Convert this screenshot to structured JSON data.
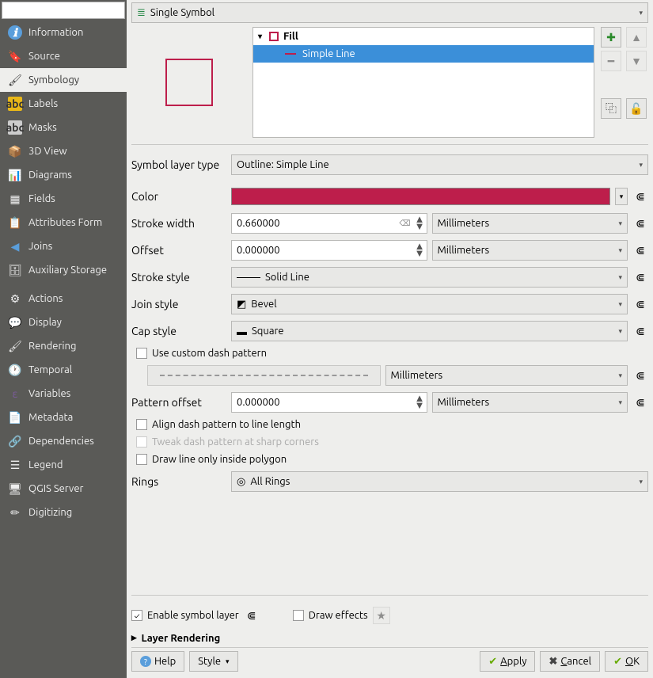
{
  "sidebar": {
    "search_placeholder": "",
    "items": [
      {
        "label": "Information",
        "icon": "ℹ",
        "cls": "icon-info"
      },
      {
        "label": "Source",
        "icon": "🔖",
        "cls": "icon-tag"
      },
      {
        "label": "Symbology",
        "icon": "🖌",
        "cls": "icon-brush",
        "selected": true
      },
      {
        "label": "Labels",
        "icon": "abc",
        "cls": "icon-abc"
      },
      {
        "label": "Masks",
        "icon": "abc",
        "cls": "icon-abc-gray"
      },
      {
        "label": "3D View",
        "icon": "📦",
        "cls": "icon-cube"
      },
      {
        "label": "Diagrams",
        "icon": "📊",
        "cls": "icon-bars"
      },
      {
        "label": "Fields",
        "icon": "▦",
        "cls": "icon-table"
      },
      {
        "label": "Attributes Form",
        "icon": "📋",
        "cls": "icon-form"
      },
      {
        "label": "Joins",
        "icon": "◀",
        "cls": "icon-join"
      },
      {
        "label": "Auxiliary Storage",
        "icon": "🗄",
        "cls": "icon-db"
      },
      {
        "sep": true
      },
      {
        "label": "Actions",
        "icon": "⚙",
        "cls": "icon-gear"
      },
      {
        "label": "Display",
        "icon": "💬",
        "cls": "icon-chat"
      },
      {
        "label": "Rendering",
        "icon": "🖌",
        "cls": "icon-brush"
      },
      {
        "label": "Temporal",
        "icon": "🕐",
        "cls": "icon-clock"
      },
      {
        "label": "Variables",
        "icon": "ε",
        "cls": "icon-var"
      },
      {
        "label": "Metadata",
        "icon": "📄",
        "cls": "icon-meta"
      },
      {
        "label": "Dependencies",
        "icon": "🔗",
        "cls": "icon-dep"
      },
      {
        "label": "Legend",
        "icon": "☰",
        "cls": "icon-legend"
      },
      {
        "label": "QGIS Server",
        "icon": "🖥",
        "cls": "icon-server"
      },
      {
        "label": "Digitizing",
        "icon": "✏",
        "cls": "icon-digit"
      }
    ]
  },
  "symbol_type": "Single Symbol",
  "tree": {
    "root": "Fill",
    "child": "Simple Line"
  },
  "symbol_layer_type": {
    "label": "Symbol layer type",
    "value": "Outline: Simple Line"
  },
  "color": {
    "label": "Color",
    "hex": "#bd1e4b"
  },
  "stroke_width": {
    "label": "Stroke width",
    "value": "0.660000",
    "unit": "Millimeters"
  },
  "offset": {
    "label": "Offset",
    "value": "0.000000",
    "unit": "Millimeters"
  },
  "stroke_style": {
    "label": "Stroke style",
    "value": "Solid Line"
  },
  "join_style": {
    "label": "Join style",
    "value": "Bevel"
  },
  "cap_style": {
    "label": "Cap style",
    "value": "Square"
  },
  "custom_dash": {
    "label": "Use custom dash pattern",
    "unit": "Millimeters"
  },
  "pattern_offset": {
    "label": "Pattern offset",
    "value": "0.000000",
    "unit": "Millimeters"
  },
  "align_dash": "Align dash pattern to line length",
  "tweak_dash": "Tweak dash pattern at sharp corners",
  "inside_only": "Draw line only inside polygon",
  "rings": {
    "label": "Rings",
    "value": "All Rings"
  },
  "enable_layer": "Enable symbol layer",
  "draw_effects": "Draw effects",
  "layer_rendering": "Layer Rendering",
  "buttons": {
    "help": "Help",
    "style": "Style",
    "apply": "Apply",
    "cancel": "Cancel",
    "ok": "OK"
  }
}
